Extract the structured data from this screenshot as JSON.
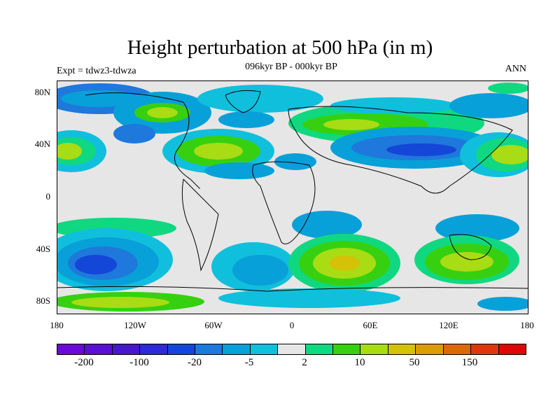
{
  "title": "Height perturbation at 500 hPa (in m)",
  "subtitle": "096kyr BP - 000kyr BP",
  "left_label": "Expt = tdwz3-tdwza",
  "right_label": "ANN",
  "lat_labels": [
    "80N",
    "40N",
    "0",
    "40S",
    "80S"
  ],
  "lon_labels": [
    "180",
    "120W",
    "60W",
    "0",
    "60E",
    "120E",
    "180"
  ],
  "colorbar": {
    "colors": [
      "#6a0ad6",
      "#5a10d0",
      "#4618c8",
      "#2e2ad4",
      "#1446d8",
      "#1f78dc",
      "#08a0d8",
      "#10bfdc",
      "#e6e6e6",
      "#10d880",
      "#36d010",
      "#a8dc14",
      "#d4c208",
      "#dc9c08",
      "#dc6808",
      "#dc3810",
      "#dc0808"
    ],
    "labels": [
      "-200",
      "-100",
      "-20",
      "-5",
      "2",
      "10",
      "50",
      "150"
    ]
  }
}
